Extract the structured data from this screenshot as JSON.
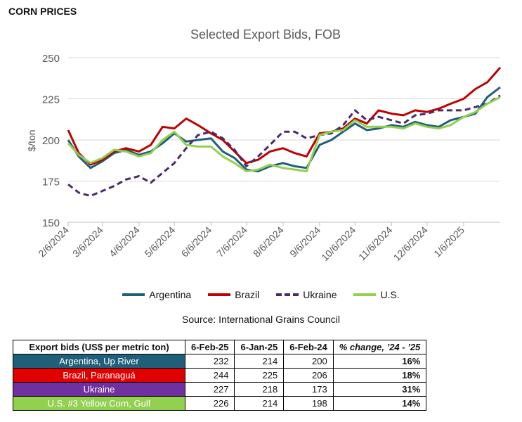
{
  "header": {
    "section_title": "CORN PRICES"
  },
  "chart_data": {
    "type": "line",
    "title": "Selected Export Bids, FOB",
    "ylabel": "$/ton",
    "xlabel": "",
    "ylim": [
      150,
      250
    ],
    "yticks": [
      150,
      175,
      200,
      225,
      250
    ],
    "xlim": [
      "2024-02-06",
      "2025-02-06"
    ],
    "xticks": [
      "2/6/2024",
      "3/6/2024",
      "4/6/2024",
      "5/6/2024",
      "6/6/2024",
      "7/6/2024",
      "8/6/2024",
      "9/6/2024",
      "10/6/2024",
      "11/6/2024",
      "12/6/2024",
      "1/6/2025"
    ],
    "grid": "horizontal",
    "legend_position": "bottom",
    "series": [
      {
        "name": "Argentina",
        "color": "#1f5f7a",
        "dash": false,
        "x": [
          "2024-02-06",
          "2024-02-15",
          "2024-02-25",
          "2024-03-06",
          "2024-03-16",
          "2024-03-26",
          "2024-04-06",
          "2024-04-16",
          "2024-04-26",
          "2024-05-06",
          "2024-05-16",
          "2024-05-26",
          "2024-06-06",
          "2024-06-16",
          "2024-06-26",
          "2024-07-06",
          "2024-07-16",
          "2024-07-26",
          "2024-08-06",
          "2024-08-16",
          "2024-08-26",
          "2024-09-06",
          "2024-09-16",
          "2024-09-26",
          "2024-10-06",
          "2024-10-16",
          "2024-10-26",
          "2024-11-06",
          "2024-11-16",
          "2024-11-26",
          "2024-12-06",
          "2024-12-16",
          "2024-12-26",
          "2025-01-06",
          "2025-01-16",
          "2025-01-26",
          "2025-02-06"
        ],
        "values": [
          200,
          190,
          183,
          187,
          192,
          194,
          191,
          193,
          198,
          204,
          199,
          200,
          201,
          193,
          189,
          182,
          181,
          184,
          186,
          184,
          183,
          197,
          200,
          205,
          210,
          206,
          207,
          209,
          208,
          211,
          209,
          208,
          212,
          214,
          216,
          226,
          232
        ]
      },
      {
        "name": "Brazil",
        "color": "#c00000",
        "dash": false,
        "x": [
          "2024-02-06",
          "2024-02-15",
          "2024-02-25",
          "2024-03-06",
          "2024-03-16",
          "2024-03-26",
          "2024-04-06",
          "2024-04-16",
          "2024-04-26",
          "2024-05-06",
          "2024-05-16",
          "2024-05-26",
          "2024-06-06",
          "2024-06-16",
          "2024-06-26",
          "2024-07-06",
          "2024-07-16",
          "2024-07-26",
          "2024-08-06",
          "2024-08-16",
          "2024-08-26",
          "2024-09-06",
          "2024-09-16",
          "2024-09-26",
          "2024-10-06",
          "2024-10-16",
          "2024-10-26",
          "2024-11-06",
          "2024-11-16",
          "2024-11-26",
          "2024-12-06",
          "2024-12-16",
          "2024-12-26",
          "2025-01-06",
          "2025-01-16",
          "2025-01-26",
          "2025-02-06"
        ],
        "values": [
          206,
          192,
          185,
          188,
          193,
          195,
          193,
          197,
          208,
          207,
          213,
          209,
          204,
          200,
          193,
          186,
          188,
          193,
          195,
          192,
          190,
          204,
          205,
          207,
          213,
          210,
          218,
          216,
          215,
          218,
          217,
          219,
          222,
          225,
          231,
          235,
          244
        ]
      },
      {
        "name": "Ukraine",
        "color": "#4b2a6b",
        "dash": true,
        "x": [
          "2024-02-06",
          "2024-02-15",
          "2024-02-25",
          "2024-03-06",
          "2024-03-16",
          "2024-03-26",
          "2024-04-06",
          "2024-04-16",
          "2024-04-26",
          "2024-05-06",
          "2024-05-16",
          "2024-05-26",
          "2024-06-06",
          "2024-06-16",
          "2024-06-26",
          "2024-07-06",
          "2024-07-16",
          "2024-07-26",
          "2024-08-06",
          "2024-08-16",
          "2024-08-26",
          "2024-09-06",
          "2024-09-16",
          "2024-09-26",
          "2024-10-06",
          "2024-10-16",
          "2024-10-26",
          "2024-11-06",
          "2024-11-16",
          "2024-11-26",
          "2024-12-06",
          "2024-12-16",
          "2024-12-26",
          "2025-01-06",
          "2025-01-16",
          "2025-01-26",
          "2025-02-06"
        ],
        "values": [
          173,
          168,
          166,
          169,
          172,
          176,
          178,
          174,
          180,
          186,
          195,
          203,
          205,
          201,
          194,
          184,
          190,
          197,
          205,
          205,
          201,
          203,
          204,
          209,
          218,
          212,
          214,
          212,
          210,
          215,
          216,
          218,
          218,
          218,
          220,
          222,
          227
        ]
      },
      {
        "name": "U.S.",
        "color": "#92d050",
        "dash": false,
        "x": [
          "2024-02-06",
          "2024-02-15",
          "2024-02-25",
          "2024-03-06",
          "2024-03-16",
          "2024-03-26",
          "2024-04-06",
          "2024-04-16",
          "2024-04-26",
          "2024-05-06",
          "2024-05-16",
          "2024-05-26",
          "2024-06-06",
          "2024-06-16",
          "2024-06-26",
          "2024-07-06",
          "2024-07-16",
          "2024-07-26",
          "2024-08-06",
          "2024-08-16",
          "2024-08-26",
          "2024-09-06",
          "2024-09-16",
          "2024-09-26",
          "2024-10-06",
          "2024-10-16",
          "2024-10-26",
          "2024-11-06",
          "2024-11-16",
          "2024-11-26",
          "2024-12-06",
          "2024-12-16",
          "2024-12-26",
          "2025-01-06",
          "2025-01-16",
          "2025-01-26",
          "2025-02-06"
        ],
        "values": [
          198,
          191,
          186,
          189,
          194,
          193,
          190,
          192,
          200,
          205,
          197,
          196,
          196,
          190,
          186,
          181,
          182,
          185,
          183,
          182,
          181,
          203,
          205,
          206,
          212,
          208,
          208,
          208,
          207,
          210,
          208,
          207,
          209,
          214,
          217,
          222,
          226
        ]
      }
    ]
  },
  "legend": {
    "items": [
      "Argentina",
      "Brazil",
      "Ukraine",
      "U.S."
    ]
  },
  "source": "Source: International Grains Council",
  "table": {
    "headers": [
      "Export bids (US$ per metric ton)",
      "6-Feb-25",
      "6-Jan-25",
      "6-Feb-24",
      "% change, ’24 - ’25"
    ],
    "rows": [
      {
        "name": "Argentina, Up River",
        "color": "#1f5f7a",
        "text_color": "#ffffff",
        "v1": "232",
        "v2": "214",
        "v3": "200",
        "pct": "16%"
      },
      {
        "name": "Brazil, Paranaguá",
        "color": "#e00000",
        "text_color": "#ffffff",
        "v1": "244",
        "v2": "225",
        "v3": "206",
        "pct": "18%"
      },
      {
        "name": "Ukraine",
        "color": "#7030a0",
        "text_color": "#ffffff",
        "v1": "227",
        "v2": "218",
        "v3": "173",
        "pct": "31%"
      },
      {
        "name": "U.S. #3 Yellow Corn, Gulf",
        "color": "#92d050",
        "text_color": "#ffffff",
        "v1": "226",
        "v2": "214",
        "v3": "198",
        "pct": "14%"
      }
    ]
  }
}
